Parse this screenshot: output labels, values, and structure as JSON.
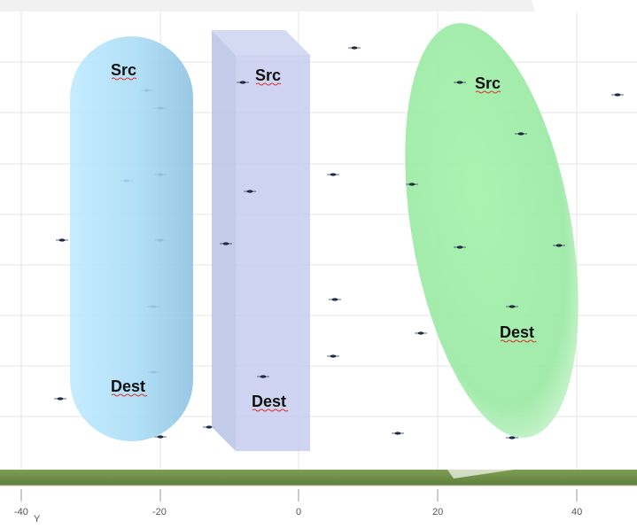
{
  "diagram": {
    "regions": [
      {
        "name": "capsule",
        "color": "#a8ddf7",
        "src_label": "Src",
        "dest_label": "Dest"
      },
      {
        "name": "box",
        "color": "#c3cbeb",
        "src_label": "Src",
        "dest_label": "Dest"
      },
      {
        "name": "ellipse",
        "color": "#9ff0a8",
        "src_label": "Src",
        "dest_label": "Dest"
      }
    ],
    "ground_color": "#6f8f47",
    "point_color": "#1f2a44"
  },
  "axis": {
    "ticks": [
      "-40",
      "-20",
      "0",
      "20",
      "40"
    ],
    "label": "Y"
  }
}
